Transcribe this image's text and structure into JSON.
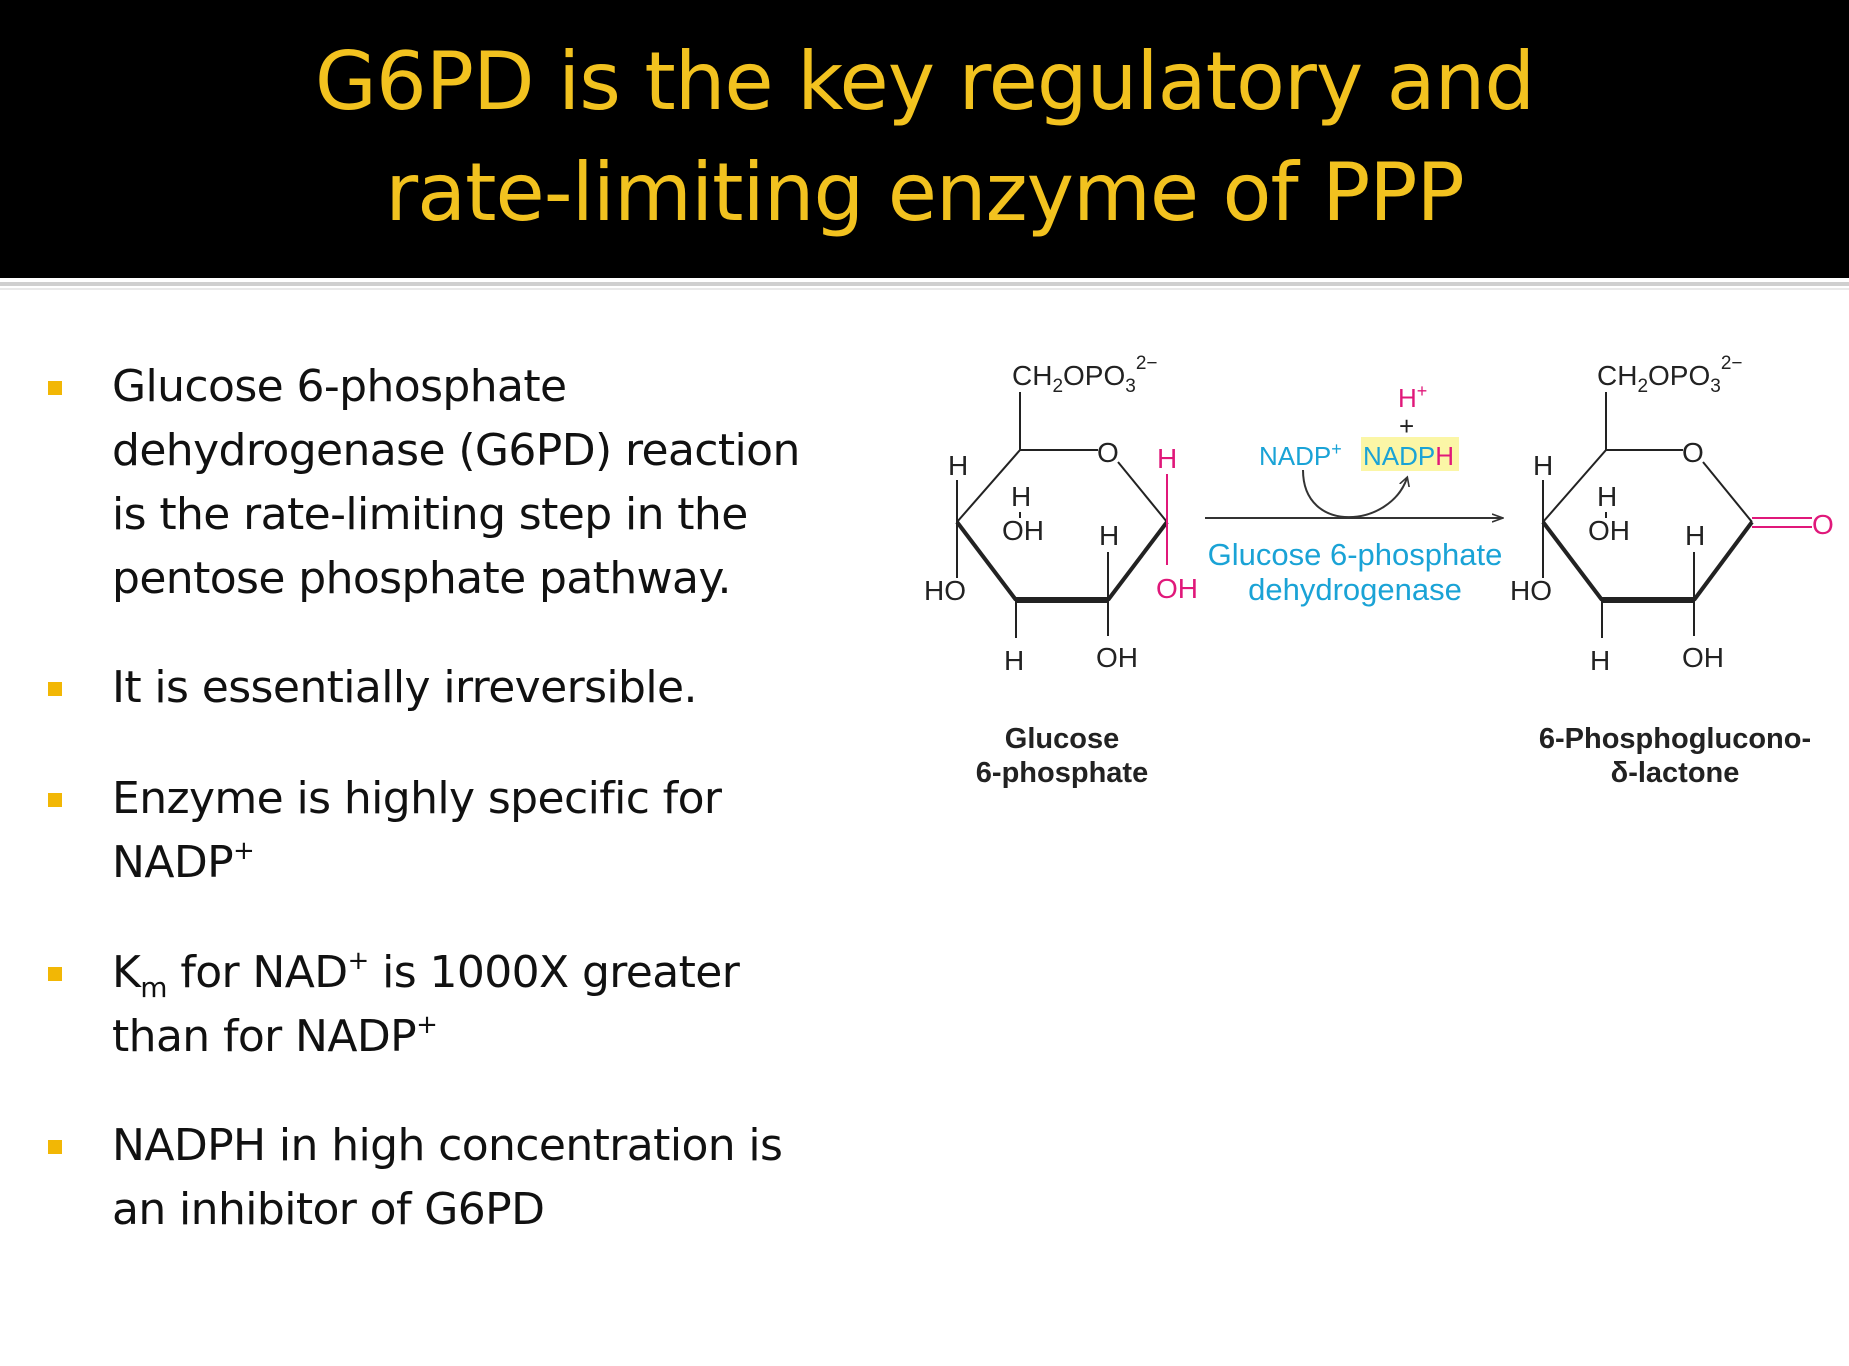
{
  "slide": {
    "title_line1": "G6PD is the key regulatory and",
    "title_line2": "rate-limiting enzyme of PPP"
  },
  "bullets": [
    {
      "lines": [
        "Glucose 6-phosphate",
        "dehydrogenase (G6PD) reaction",
        "is the rate-limiting step in the",
        "pentose phosphate pathway."
      ]
    },
    {
      "lines": [
        "It is essentially irreversible."
      ]
    },
    {
      "line1_text": "Enzyme is highly specific for",
      "line2_text": "NADP",
      "line2_sup": "+"
    },
    {
      "k": "K",
      "k_sub": "m",
      "mid": " for NAD",
      "sup1": "+",
      "rest": " is 1000X greater",
      "line2_text": "than for NADP",
      "line2_sup": "+"
    },
    {
      "lines": [
        "NADPH in high concentration is",
        "an inhibitor of G6PD"
      ]
    }
  ],
  "reaction": {
    "phosphate_group": "CH",
    "phosphate_sub2": "2",
    "phosphate_mid": "OPO",
    "phosphate_sub3": "3",
    "phosphate_charge": "2−",
    "ring_oxygen": "O",
    "h": "H",
    "oh": "OH",
    "ho": "HO",
    "carbonyl_o": "O",
    "reactant_name_line1": "Glucose",
    "reactant_name_line2": "6-phosphate",
    "product_name_line1": "6-Phosphoglucono-",
    "product_name_line2": "δ-lactone",
    "cofactor_in": "NADP",
    "cofactor_in_charge": "+",
    "cofactor_out_a": "NADP",
    "cofactor_out_b": "H",
    "proton": "H",
    "proton_charge": "+",
    "plus": "+",
    "enzyme_line1": "Glucose 6-phosphate",
    "enzyme_line2": "dehydrogenase"
  },
  "colors": {
    "title": "#f2c21f",
    "bullet": "#f2b705",
    "enzyme_blue": "#1aa3d6",
    "highlight_magenta": "#e0187a",
    "nadph_highlight": "#fbf6a6"
  }
}
